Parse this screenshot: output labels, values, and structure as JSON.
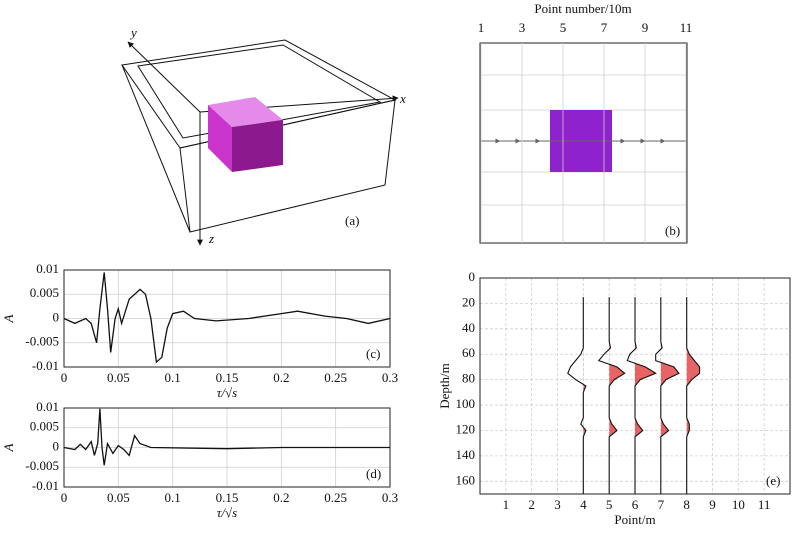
{
  "panel_a": {
    "x_label": "x",
    "y_label": "y",
    "z_label": "z",
    "label": "(a)"
  },
  "panel_b": {
    "title": "Point number/10m",
    "xlim": [
      1,
      11
    ],
    "xticks": [
      1,
      3,
      5,
      7,
      9,
      11
    ],
    "label": "(b)"
  },
  "chart_data": [
    {
      "type": "line",
      "label": "(c)",
      "x_label": "τ/√s",
      "y_label": "A",
      "xlim": [
        0,
        0.3
      ],
      "xticks": [
        0,
        0.05,
        0.1,
        0.15,
        0.2,
        0.25,
        0.3
      ],
      "ylim": [
        -0.01,
        0.01
      ],
      "yticks": [
        0.01,
        0.005,
        0,
        -0.005,
        -0.01
      ],
      "grid": true,
      "color": "#111111",
      "x": [
        0,
        0.01,
        0.02,
        0.025,
        0.03,
        0.033,
        0.037,
        0.04,
        0.043,
        0.047,
        0.05,
        0.053,
        0.06,
        0.07,
        0.075,
        0.08,
        0.085,
        0.09,
        0.095,
        0.1,
        0.11,
        0.12,
        0.14,
        0.17,
        0.2,
        0.215,
        0.24,
        0.26,
        0.28,
        0.3
      ],
      "values": [
        0,
        -0.001,
        0,
        -0.001,
        -0.005,
        0.002,
        0.0095,
        0.002,
        -0.007,
        0,
        0.002,
        -0.001,
        0.004,
        0.006,
        0.005,
        0,
        -0.009,
        -0.008,
        -0.002,
        0.001,
        0.0015,
        0,
        -0.0005,
        0,
        0.001,
        0.0015,
        0.0005,
        0,
        -0.001,
        0
      ]
    },
    {
      "type": "line",
      "label": "(d)",
      "x_label": "τ/√s",
      "y_label": "A",
      "xlim": [
        0,
        0.3
      ],
      "xticks": [
        0,
        0.05,
        0.1,
        0.15,
        0.2,
        0.25,
        0.3
      ],
      "ylim": [
        -0.01,
        0.01
      ],
      "yticks": [
        0.01,
        0.005,
        0,
        -0.005,
        -0.01
      ],
      "grid": true,
      "color": "#111111",
      "x": [
        0,
        0.01,
        0.015,
        0.02,
        0.025,
        0.028,
        0.031,
        0.033,
        0.035,
        0.037,
        0.04,
        0.045,
        0.05,
        0.055,
        0.06,
        0.065,
        0.07,
        0.08,
        0.15,
        0.2,
        0.3
      ],
      "values": [
        0,
        -0.0005,
        0.0008,
        -0.0005,
        0.0015,
        -0.002,
        0.001,
        0.0098,
        0,
        -0.0045,
        0.001,
        -0.0015,
        0.0005,
        -0.0005,
        -0.002,
        0.003,
        0.001,
        0,
        -0.0003,
        0,
        0
      ]
    },
    {
      "type": "wiggle",
      "label": "(e)",
      "x_label": "Point/m",
      "y_label": "Depth/m",
      "xlim": [
        0,
        12
      ],
      "xticks": [
        1,
        2,
        3,
        4,
        5,
        6,
        7,
        8,
        9,
        10,
        11
      ],
      "ylim": [
        0,
        170
      ],
      "yticks": [
        0,
        20,
        40,
        60,
        80,
        100,
        120,
        140,
        160
      ],
      "y_inverted": true,
      "grid": true,
      "color": "#111111",
      "fill_color": "#e03030",
      "depth": [
        15,
        50,
        55,
        60,
        65,
        70,
        75,
        80,
        85,
        90,
        110,
        115,
        120,
        125,
        130,
        170
      ],
      "series": [
        {
          "x": 4,
          "amplitude": [
            0,
            0,
            0,
            -0.1,
            -0.3,
            -0.5,
            -0.6,
            -0.3,
            0.1,
            0,
            0,
            -0.1,
            0.1,
            0,
            0,
            0
          ]
        },
        {
          "x": 5,
          "amplitude": [
            0,
            0,
            0.05,
            -0.2,
            -0.4,
            0.3,
            0.6,
            0.2,
            0,
            0,
            0,
            0.1,
            0.3,
            0,
            0,
            0
          ]
        },
        {
          "x": 6,
          "amplitude": [
            0,
            0,
            0.05,
            -0.2,
            -0.3,
            0.4,
            0.8,
            0.2,
            0,
            0,
            0,
            0.1,
            0.3,
            0,
            0,
            0
          ]
        },
        {
          "x": 7,
          "amplitude": [
            0,
            0,
            0.05,
            -0.2,
            -0.2,
            0.5,
            0.7,
            0.2,
            0,
            0,
            0,
            0.1,
            0.3,
            0,
            0,
            0
          ]
        },
        {
          "x": 8,
          "amplitude": [
            0,
            0,
            0,
            0.1,
            0.3,
            0.5,
            0.5,
            0.2,
            0,
            0,
            0,
            0.1,
            0.1,
            0,
            0,
            0
          ]
        }
      ]
    }
  ]
}
